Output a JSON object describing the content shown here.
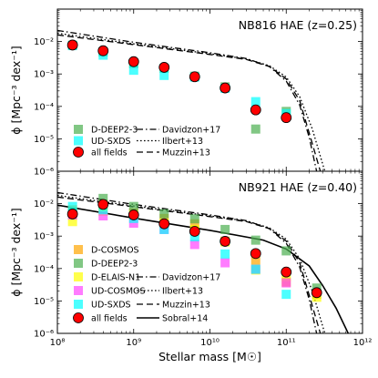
{
  "chart_data": [
    {
      "type": "scatter",
      "title": "NB816 HAE (z=0.25)",
      "xlabel": "",
      "ylabel": "ϕ [Mpc⁻³ dex⁻¹]",
      "xscale": "log",
      "yscale": "log",
      "xlim": [
        100000000,
        1000000000000
      ],
      "ylim": [
        1e-06,
        0.1
      ],
      "y_tick_labels": [
        "10⁻⁶",
        "10⁻⁵",
        "10⁻⁴",
        "10⁻³",
        "10⁻²"
      ],
      "grid": false,
      "legend_placement": "lower-left and lower-center",
      "series": [
        {
          "name": "D-DEEP2-3",
          "marker": "square",
          "color": "#4caf50",
          "x": [
            158000000.0,
            398000000.0,
            1000000000.0,
            2510000000.0,
            6310000000.0,
            15800000000.0,
            39800000000.0,
            100000000000.0
          ],
          "y": [
            0.0077,
            0.0048,
            0.0021,
            0.0015,
            0.00085,
            0.0004,
            2e-05,
            7e-05
          ]
        },
        {
          "name": "UD-SXDS",
          "marker": "square",
          "color": "#00ffff",
          "x": [
            158000000.0,
            398000000.0,
            1000000000.0,
            2510000000.0,
            6310000000.0,
            15800000000.0,
            39800000000.0,
            100000000000.0
          ],
          "y": [
            0.0075,
            0.0038,
            0.0013,
            0.0009,
            0.0008,
            0.00036,
            0.00014,
            6e-05
          ]
        },
        {
          "name": "all fields",
          "marker": "circle",
          "color": "#ff0000",
          "x": [
            158000000.0,
            398000000.0,
            1000000000.0,
            2510000000.0,
            6310000000.0,
            15800000000.0,
            39800000000.0,
            100000000000.0
          ],
          "y": [
            0.0078,
            0.0052,
            0.0024,
            0.0016,
            0.00082,
            0.00037,
            7.8e-05,
            4.5e-05
          ]
        },
        {
          "name": "Davidzon+17",
          "line": "dashdot",
          "color": "#000000",
          "x": [
            100000000.0,
            1000000000.0,
            10000000000.0,
            30000000000.0,
            60000000000.0,
            100000000000.0,
            150000000000.0,
            200000000000.0,
            250000000000.0
          ],
          "y": [
            0.022,
            0.0095,
            0.0045,
            0.003,
            0.0017,
            0.0006,
            0.00011,
            1.1e-05,
            1e-06
          ]
        },
        {
          "name": "Ilbert+13",
          "line": "dotted",
          "color": "#000000",
          "x": [
            100000000.0,
            1000000000.0,
            10000000000.0,
            30000000000.0,
            60000000000.0,
            100000000000.0,
            150000000000.0,
            220000000000.0,
            320000000000.0
          ],
          "y": [
            0.018,
            0.0085,
            0.0042,
            0.0029,
            0.0018,
            0.0008,
            0.0002,
            2e-05,
            1e-06
          ]
        },
        {
          "name": "Muzzin+13",
          "line": "dashed",
          "color": "#000000",
          "x": [
            100000000.0,
            1000000000.0,
            10000000000.0,
            30000000000.0,
            60000000000.0,
            100000000000.0,
            150000000000.0,
            200000000000.0,
            280000000000.0
          ],
          "y": [
            0.016,
            0.008,
            0.004,
            0.0028,
            0.0017,
            0.0007,
            0.00015,
            1.5e-05,
            1e-06
          ]
        }
      ]
    },
    {
      "type": "scatter",
      "title": "NB921 HAE (z=0.40)",
      "xlabel": "Stellar mass [M☉]",
      "ylabel": "ϕ [Mpc⁻³ dex⁻¹]",
      "xscale": "log",
      "yscale": "log",
      "xlim": [
        100000000,
        1000000000000
      ],
      "ylim": [
        1e-06,
        0.1
      ],
      "x_tick_labels": [
        "10⁸",
        "10⁹",
        "10¹⁰",
        "10¹¹",
        "10¹²"
      ],
      "y_tick_labels": [
        "10⁻⁶",
        "10⁻⁵",
        "10⁻⁴",
        "10⁻³",
        "10⁻²"
      ],
      "grid": false,
      "legend_placement": "lower-left and lower-center",
      "series": [
        {
          "name": "D-COSMOS",
          "marker": "square",
          "color": "#ffa500",
          "x": [
            158000000.0,
            398000000.0,
            1000000000.0,
            2510000000.0,
            6310000000.0,
            15800000000.0,
            39800000000.0,
            100000000000.0,
            251000000000.0
          ],
          "y": [
            0.0065,
            0.0095,
            0.0052,
            0.0035,
            0.0024,
            0.0007,
            0.00018,
            3.8e-05,
            1.6e-05
          ]
        },
        {
          "name": "D-DEEP2-3",
          "marker": "square",
          "color": "#4caf50",
          "x": [
            158000000.0,
            398000000.0,
            1000000000.0,
            2510000000.0,
            6310000000.0,
            15800000000.0,
            39800000000.0,
            100000000000.0,
            251000000000.0
          ],
          "y": [
            0.0055,
            0.0145,
            0.0082,
            0.0049,
            0.0034,
            0.0016,
            0.00075,
            0.00035,
            2.5e-05
          ]
        },
        {
          "name": "D-ELAIS-N1",
          "marker": "square",
          "color": "#ffff00",
          "x": [
            158000000.0,
            398000000.0,
            1000000000.0,
            2510000000.0,
            6310000000.0,
            15800000000.0,
            39800000000.0,
            100000000000.0,
            251000000000.0
          ],
          "y": [
            0.0028,
            0.0058,
            0.0045,
            0.0025,
            0.0016,
            0.00066,
            9e-05,
            5.6e-05,
            1.3e-05
          ]
        },
        {
          "name": "UD-COSMOS",
          "marker": "square",
          "color": "#ff44ff",
          "x": [
            158000000.0,
            398000000.0,
            1000000000.0,
            2510000000.0,
            6310000000.0,
            15800000000.0,
            39800000000.0,
            100000000000.0
          ],
          "y": [
            0.0045,
            0.0042,
            0.0025,
            0.0016,
            0.00055,
            0.00015,
            9.5e-05,
            3.6e-05
          ]
        },
        {
          "name": "UD-SXDS",
          "marker": "square",
          "color": "#00ffff",
          "x": [
            158000000.0,
            398000000.0,
            1000000000.0,
            2510000000.0,
            6310000000.0,
            15800000000.0,
            39800000000.0,
            100000000000.0
          ],
          "y": [
            0.0082,
            0.0065,
            0.0035,
            0.0016,
            0.00095,
            0.00028,
            9.5e-05,
            1.6e-05
          ]
        },
        {
          "name": "all fields",
          "marker": "circle",
          "color": "#ff0000",
          "x": [
            158000000.0,
            398000000.0,
            1000000000.0,
            2510000000.0,
            6310000000.0,
            15800000000.0,
            39800000000.0,
            100000000000.0,
            251000000000.0
          ],
          "y": [
            0.0048,
            0.0095,
            0.0045,
            0.0024,
            0.0014,
            0.00069,
            0.00029,
            7.8e-05,
            1.8e-05
          ]
        },
        {
          "name": "Davidzon+17",
          "line": "dashdot",
          "color": "#000000",
          "x": [
            100000000.0,
            1000000000.0,
            10000000000.0,
            30000000000.0,
            60000000000.0,
            100000000000.0,
            150000000000.0,
            200000000000.0,
            250000000000.0
          ],
          "y": [
            0.022,
            0.0095,
            0.0045,
            0.003,
            0.0017,
            0.0006,
            0.00011,
            1.1e-05,
            1e-06
          ]
        },
        {
          "name": "Ilbert+13",
          "line": "dotted",
          "color": "#000000",
          "x": [
            100000000.0,
            1000000000.0,
            10000000000.0,
            30000000000.0,
            60000000000.0,
            100000000000.0,
            150000000000.0,
            220000000000.0,
            320000000000.0
          ],
          "y": [
            0.018,
            0.0085,
            0.0042,
            0.0029,
            0.0018,
            0.0008,
            0.0002,
            2e-05,
            1e-06
          ]
        },
        {
          "name": "Muzzin+13",
          "line": "dashed",
          "color": "#000000",
          "x": [
            100000000.0,
            1000000000.0,
            10000000000.0,
            30000000000.0,
            60000000000.0,
            100000000000.0,
            150000000000.0,
            200000000000.0,
            280000000000.0
          ],
          "y": [
            0.016,
            0.008,
            0.004,
            0.0028,
            0.0017,
            0.0007,
            0.00015,
            1.5e-05,
            1e-06
          ]
        },
        {
          "name": "Sobral+14",
          "line": "solid",
          "color": "#000000",
          "x": [
            100000000.0,
            1000000000.0,
            10000000000.0,
            50000000000.0,
            100000000000.0,
            200000000000.0,
            300000000000.0,
            450000000000.0,
            650000000000.0
          ],
          "y": [
            0.009,
            0.0036,
            0.0015,
            0.00075,
            0.0004,
            0.00012,
            3e-05,
            6e-06,
            1e-06
          ]
        }
      ]
    }
  ]
}
